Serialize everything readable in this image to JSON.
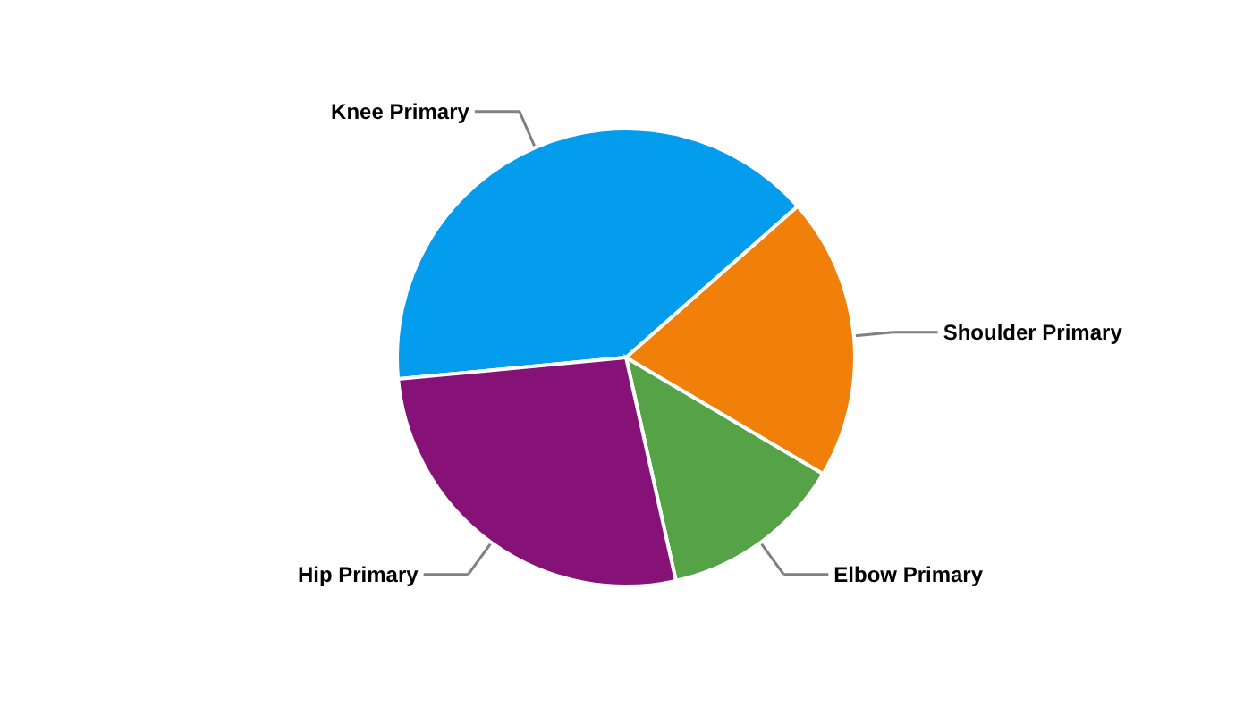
{
  "chart_data": {
    "type": "pie",
    "categories": [
      "Knee Primary",
      "Shoulder Primary",
      "Elbow Primary",
      "Hip Primary"
    ],
    "values": [
      40,
      20,
      13,
      27
    ],
    "colors": [
      "#049ded",
      "#f0800a",
      "#55a346",
      "#861177"
    ]
  }
}
